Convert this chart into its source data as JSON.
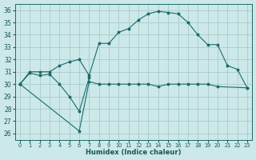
{
  "xlabel": "Humidex (Indice chaleur)",
  "bg_color": "#cce8e8",
  "grid_color": "#aacccc",
  "line_color": "#1a6b6b",
  "xlim": [
    -0.5,
    23.5
  ],
  "ylim": [
    25.5,
    36.5
  ],
  "xticks": [
    0,
    1,
    2,
    3,
    4,
    5,
    6,
    7,
    8,
    9,
    10,
    11,
    12,
    13,
    14,
    15,
    16,
    17,
    18,
    19,
    20,
    21,
    22,
    23
  ],
  "yticks": [
    26,
    27,
    28,
    29,
    30,
    31,
    32,
    33,
    34,
    35,
    36
  ],
  "series": [
    {
      "points": [
        [
          0,
          30.0
        ],
        [
          1,
          30.9
        ],
        [
          2,
          30.7
        ],
        [
          3,
          30.8
        ],
        [
          4,
          30.0
        ],
        [
          5,
          29.0
        ],
        [
          6,
          27.8
        ],
        [
          7,
          30.5
        ]
      ],
      "connect_gaps": false
    },
    {
      "points": [
        [
          0,
          30.0
        ],
        [
          6,
          26.2
        ],
        [
          7,
          30.2
        ],
        [
          8,
          30.0
        ],
        [
          9,
          30.0
        ],
        [
          10,
          30.0
        ],
        [
          11,
          30.0
        ],
        [
          12,
          30.0
        ],
        [
          13,
          30.0
        ],
        [
          14,
          29.8
        ],
        [
          15,
          30.0
        ],
        [
          16,
          30.0
        ],
        [
          17,
          30.0
        ],
        [
          18,
          30.0
        ],
        [
          19,
          30.0
        ],
        [
          20,
          29.8
        ],
        [
          23,
          29.7
        ]
      ],
      "connect_gaps": false
    },
    {
      "points": [
        [
          0,
          30.0
        ],
        [
          1,
          31.0
        ],
        [
          2,
          31.0
        ],
        [
          3,
          31.0
        ],
        [
          4,
          31.5
        ],
        [
          5,
          31.8
        ],
        [
          6,
          32.0
        ],
        [
          7,
          30.7
        ],
        [
          8,
          33.3
        ],
        [
          9,
          33.3
        ],
        [
          10,
          34.2
        ],
        [
          11,
          34.5
        ],
        [
          12,
          35.2
        ],
        [
          13,
          35.7
        ],
        [
          14,
          35.9
        ],
        [
          15,
          35.8
        ],
        [
          16,
          35.7
        ],
        [
          17,
          35.0
        ],
        [
          18,
          34.0
        ],
        [
          19,
          33.2
        ],
        [
          20,
          33.2
        ],
        [
          21,
          31.5
        ],
        [
          22,
          31.2
        ],
        [
          23,
          29.7
        ]
      ],
      "connect_gaps": false
    }
  ]
}
